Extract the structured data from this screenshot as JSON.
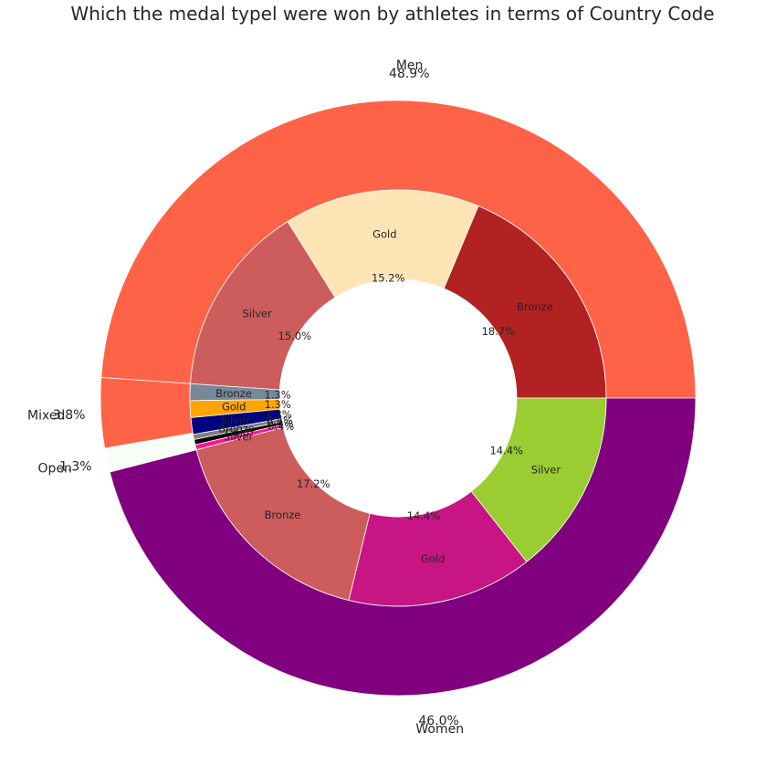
{
  "chart_data": {
    "type": "pie",
    "variant": "nested-donut",
    "title": "Which the medal typel were won by athletes in terms of Country Code",
    "start_angle_deg": 0,
    "direction": "counterclockwise",
    "outer": [
      {
        "label": "Men",
        "pct_label": "48.9%",
        "value": 48.9,
        "color": "#ff6347"
      },
      {
        "label": "Mixed",
        "pct_label": "3.8%",
        "value": 3.8,
        "color": "#ff6347"
      },
      {
        "label": "Open",
        "pct_label": "1.3%",
        "value": 1.3,
        "color": "#f5fff5"
      },
      {
        "label": "Women",
        "pct_label": "46.0%",
        "value": 46.0,
        "color": "#800080"
      }
    ],
    "inner": [
      {
        "group": "Men",
        "label": "Bronze",
        "pct_label": "18.7%",
        "value": 18.7,
        "color": "#b22222"
      },
      {
        "group": "Men",
        "label": "Gold",
        "pct_label": "15.2%",
        "value": 15.2,
        "color": "#ffe4b5"
      },
      {
        "group": "Men",
        "label": "Silver",
        "pct_label": "15.0%",
        "value": 15.0,
        "color": "#cd5c5c"
      },
      {
        "group": "Mixed",
        "label": "Bronze",
        "pct_label": "1.3%",
        "value": 1.3,
        "color": "#778899"
      },
      {
        "group": "Mixed",
        "label": "Gold",
        "pct_label": "1.3%",
        "value": 1.3,
        "color": "#ffa500"
      },
      {
        "group": "Mixed",
        "label": "Silver",
        "pct_label": "1.3%",
        "value": 1.3,
        "color": "#000080"
      },
      {
        "group": "Open",
        "label": "Bronze",
        "pct_label": "0.4%",
        "value": 0.4,
        "color": "#808080"
      },
      {
        "group": "Open",
        "label": "Gold",
        "pct_label": "0.4%",
        "value": 0.4,
        "color": "#000000"
      },
      {
        "group": "Open",
        "label": "Silver",
        "pct_label": "0.4%",
        "value": 0.4,
        "color": "#ff1493"
      },
      {
        "group": "Women",
        "label": "Bronze",
        "pct_label": "17.2%",
        "value": 17.2,
        "color": "#cd5c5c"
      },
      {
        "group": "Women",
        "label": "Gold",
        "pct_label": "14.4%",
        "value": 14.4,
        "color": "#c71585"
      },
      {
        "group": "Women",
        "label": "Silver",
        "pct_label": "14.4%",
        "value": 14.4,
        "color": "#9acd32"
      }
    ]
  }
}
